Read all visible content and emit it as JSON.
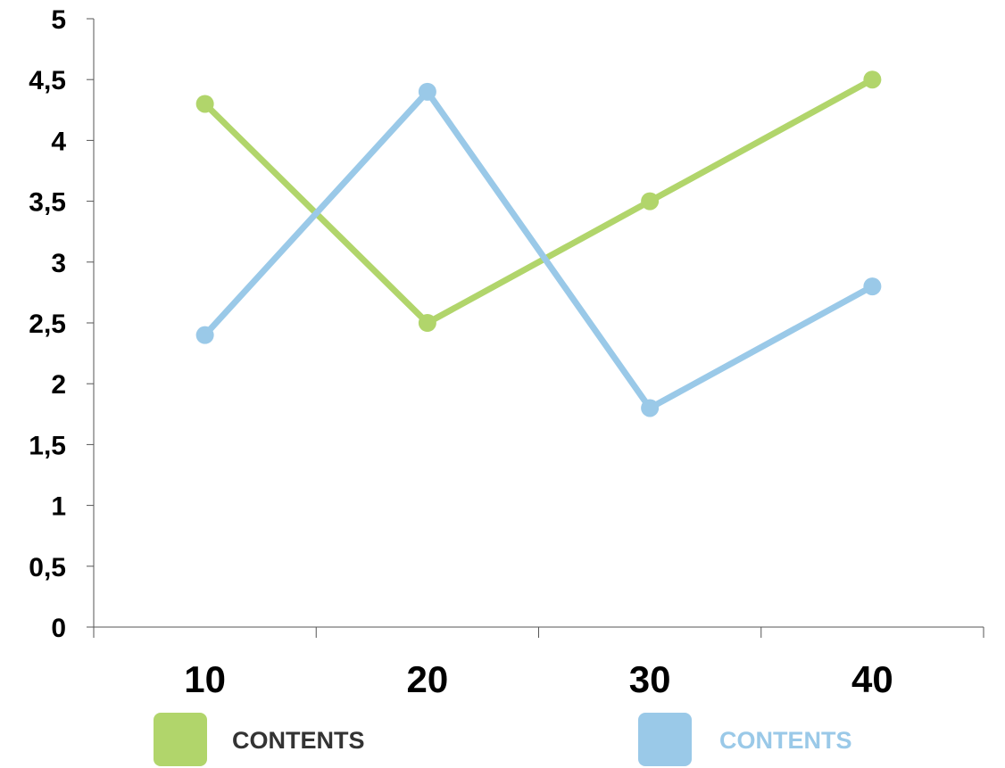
{
  "chart_data": {
    "type": "line",
    "categories": [
      "10",
      "20",
      "30",
      "40"
    ],
    "series": [
      {
        "name": "CONTENTS",
        "values": [
          4.3,
          2.5,
          3.5,
          4.5
        ],
        "color": "#b1d56b",
        "legend_text_color": "#333333"
      },
      {
        "name": "CONTENTS",
        "values": [
          2.4,
          4.4,
          1.8,
          2.8
        ],
        "color": "#9ac9e8",
        "legend_text_color": "#9ac9e8"
      }
    ],
    "ylim": [
      0,
      5
    ],
    "yticks": [
      "0",
      "0,5",
      "1",
      "1,5",
      "2",
      "2,5",
      "3",
      "3,5",
      "4",
      "4,5",
      "5"
    ],
    "title": "",
    "xlabel": "",
    "ylabel": "",
    "grid": false,
    "legend_position": "bottom"
  }
}
